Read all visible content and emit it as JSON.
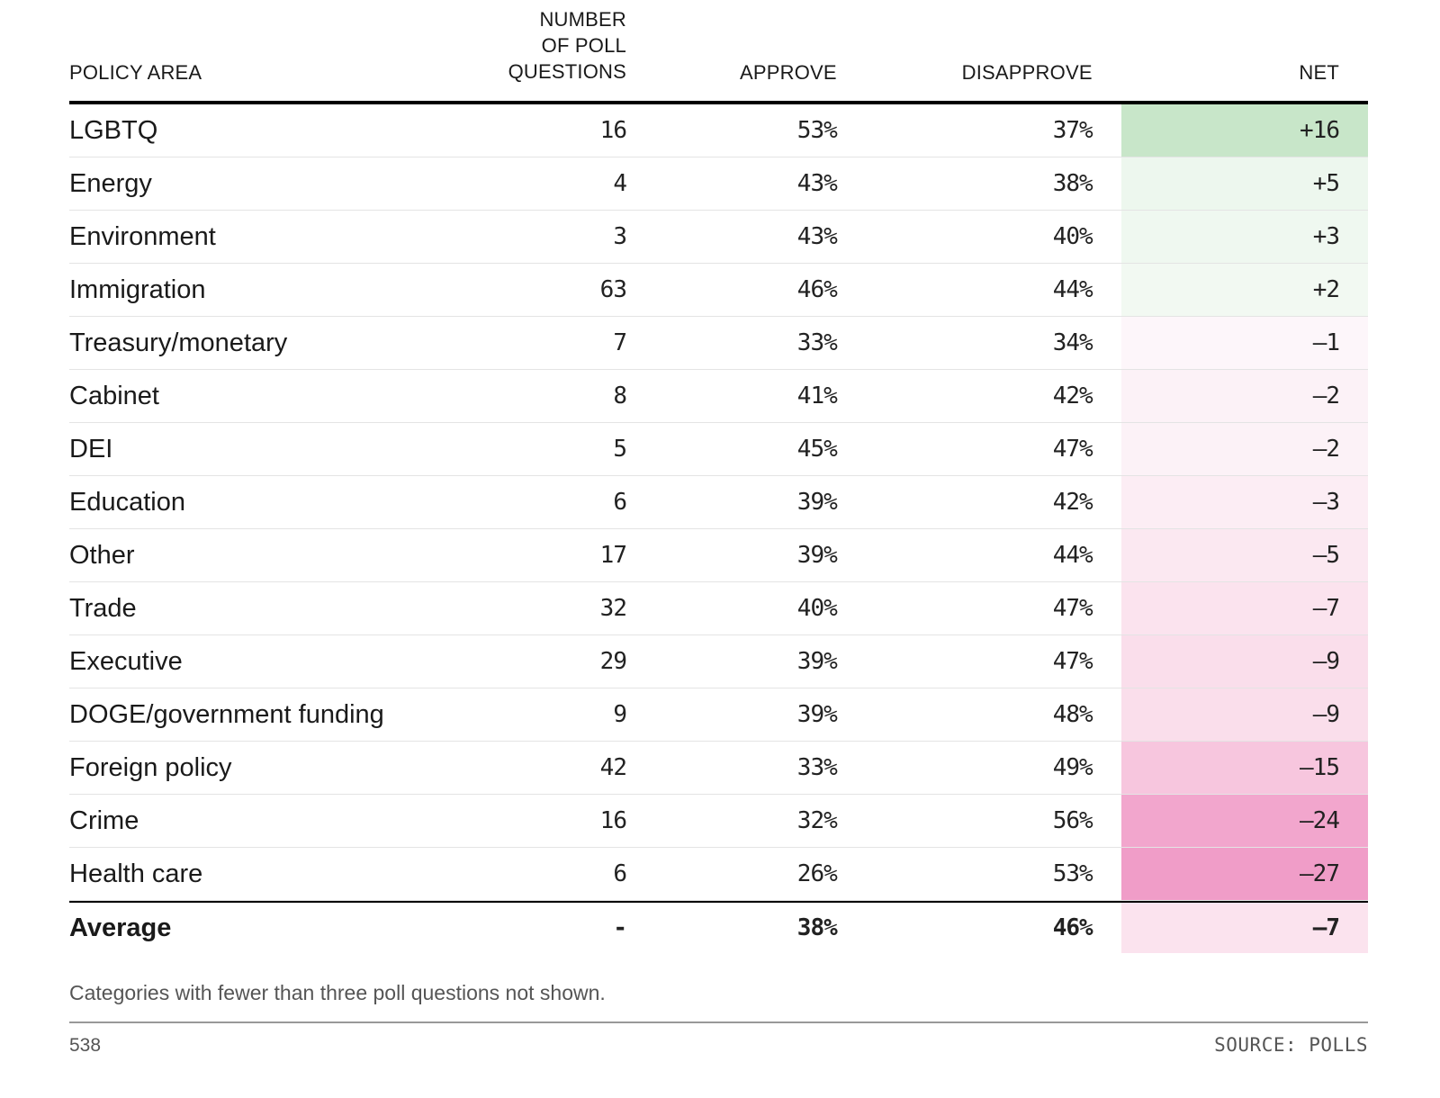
{
  "chart_data": {
    "type": "table",
    "columns": [
      "POLICY AREA",
      "NUMBER OF POLL QUESTIONS",
      "APPROVE",
      "DISAPPROVE",
      "NET"
    ],
    "rows": [
      {
        "area": "LGBTQ",
        "questions": "16",
        "approve": "53%",
        "disapprove": "37%",
        "net": "+16",
        "net_value": 16,
        "net_color": "#c8e6c9"
      },
      {
        "area": "Energy",
        "questions": "4",
        "approve": "43%",
        "disapprove": "38%",
        "net": "+5",
        "net_value": 5,
        "net_color": "#edf7ee"
      },
      {
        "area": "Environment",
        "questions": "3",
        "approve": "43%",
        "disapprove": "40%",
        "net": "+3",
        "net_value": 3,
        "net_color": "#eff8f0"
      },
      {
        "area": "Immigration",
        "questions": "63",
        "approve": "46%",
        "disapprove": "44%",
        "net": "+2",
        "net_value": 2,
        "net_color": "#f2f9f2"
      },
      {
        "area": "Treasury/monetary",
        "questions": "7",
        "approve": "33%",
        "disapprove": "34%",
        "net": "–1",
        "net_value": -1,
        "net_color": "#fdf6fa"
      },
      {
        "area": "Cabinet",
        "questions": "8",
        "approve": "41%",
        "disapprove": "42%",
        "net": "–2",
        "net_value": -2,
        "net_color": "#fcf2f7"
      },
      {
        "area": "DEI",
        "questions": "5",
        "approve": "45%",
        "disapprove": "47%",
        "net": "–2",
        "net_value": -2,
        "net_color": "#fcf2f7"
      },
      {
        "area": "Education",
        "questions": "6",
        "approve": "39%",
        "disapprove": "42%",
        "net": "–3",
        "net_value": -3,
        "net_color": "#fcedf4"
      },
      {
        "area": "Other",
        "questions": "17",
        "approve": "39%",
        "disapprove": "44%",
        "net": "–5",
        "net_value": -5,
        "net_color": "#fbe8f1"
      },
      {
        "area": "Trade",
        "questions": "32",
        "approve": "40%",
        "disapprove": "47%",
        "net": "–7",
        "net_value": -7,
        "net_color": "#fbe3ee"
      },
      {
        "area": "Executive",
        "questions": "29",
        "approve": "39%",
        "disapprove": "47%",
        "net": "–9",
        "net_value": -9,
        "net_color": "#fadeeb"
      },
      {
        "area": "DOGE/government funding",
        "questions": "9",
        "approve": "39%",
        "disapprove": "48%",
        "net": "–9",
        "net_value": -9,
        "net_color": "#fadeeb"
      },
      {
        "area": "Foreign policy",
        "questions": "42",
        "approve": "33%",
        "disapprove": "49%",
        "net": "–15",
        "net_value": -15,
        "net_color": "#f7c6de"
      },
      {
        "area": "Crime",
        "questions": "16",
        "approve": "32%",
        "disapprove": "56%",
        "net": "–24",
        "net_value": -24,
        "net_color": "#f2a6cd"
      },
      {
        "area": "Health care",
        "questions": "6",
        "approve": "26%",
        "disapprove": "53%",
        "net": "–27",
        "net_value": -27,
        "net_color": "#f09dc8"
      }
    ],
    "average": {
      "area": "Average",
      "questions": "-",
      "approve": "38%",
      "disapprove": "46%",
      "net": "–7",
      "net_value": -7,
      "net_color": "#fbe3ee"
    }
  },
  "header": {
    "area": "POLICY AREA",
    "questions_line1": "NUMBER",
    "questions_line2": "OF POLL",
    "questions_line3": "QUESTIONS",
    "approve": "APPROVE",
    "disapprove": "DISAPPROVE",
    "net": "NET"
  },
  "footer": {
    "note": "Categories with fewer than three poll questions not shown.",
    "brand": "538",
    "source": "SOURCE: POLLS"
  }
}
